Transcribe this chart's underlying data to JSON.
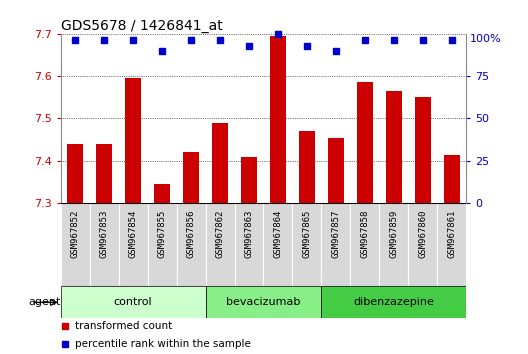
{
  "title": "GDS5678 / 1426841_at",
  "samples": [
    "GSM967852",
    "GSM967853",
    "GSM967854",
    "GSM967855",
    "GSM967856",
    "GSM967862",
    "GSM967863",
    "GSM967864",
    "GSM967865",
    "GSM967857",
    "GSM967858",
    "GSM967859",
    "GSM967860",
    "GSM967861"
  ],
  "bar_values": [
    7.44,
    7.44,
    7.595,
    7.345,
    7.42,
    7.49,
    7.41,
    7.695,
    7.47,
    7.455,
    7.585,
    7.565,
    7.55,
    7.415
  ],
  "percentile_values": [
    96,
    96,
    96,
    90,
    96,
    96,
    93,
    100,
    93,
    90,
    96,
    96,
    96,
    96
  ],
  "ylim": [
    7.3,
    7.7
  ],
  "yticks": [
    7.3,
    7.4,
    7.5,
    7.6,
    7.7
  ],
  "right_yticks": [
    0,
    25,
    50,
    75
  ],
  "bar_color": "#cc0000",
  "dot_color": "#0000cc",
  "groups": [
    {
      "label": "control",
      "start": 0,
      "end": 5,
      "color": "#ccffcc"
    },
    {
      "label": "bevacizumab",
      "start": 5,
      "end": 9,
      "color": "#88ee88"
    },
    {
      "label": "dibenzazepine",
      "start": 9,
      "end": 14,
      "color": "#44cc44"
    }
  ],
  "legend_bar_label": "transformed count",
  "legend_dot_label": "percentile rank within the sample",
  "agent_label": "agent",
  "left_tick_color": "#cc0000",
  "right_tick_color": "#0000cc",
  "bar_width": 0.55,
  "tick_bg_color": "#d8d8d8",
  "plot_border_color": "#888888"
}
